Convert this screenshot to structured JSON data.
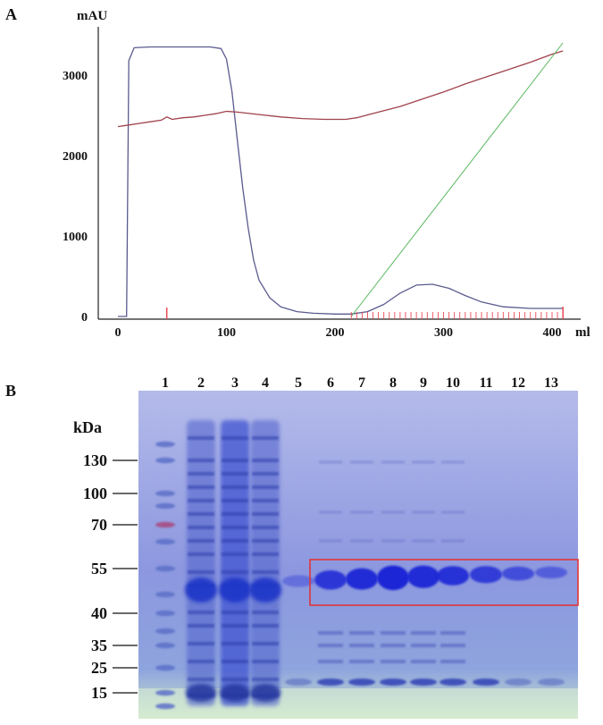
{
  "chart_data": [
    {
      "panel": "A",
      "type": "line",
      "ylabel": "mAU",
      "xlabel": "ml",
      "xlim": [
        0,
        440
      ],
      "ylim": [
        0,
        3500
      ],
      "xticks": [
        "0",
        "100",
        "200",
        "300",
        "400"
      ],
      "yticks": [
        "0",
        "1000",
        "2000",
        "3000"
      ],
      "series": [
        {
          "color": "#5a5a8e",
          "x": [
            0,
            8,
            10,
            15,
            30,
            60,
            85,
            95,
            100,
            105,
            110,
            115,
            120,
            125,
            130,
            140,
            150,
            165,
            180,
            200,
            215,
            230,
            245,
            260,
            275,
            290,
            305,
            320,
            335,
            355,
            380,
            410
          ],
          "y": [
            0,
            0,
            3180,
            3340,
            3350,
            3350,
            3350,
            3330,
            3200,
            2800,
            2200,
            1600,
            1100,
            700,
            450,
            230,
            120,
            60,
            40,
            30,
            30,
            60,
            150,
            290,
            390,
            400,
            350,
            260,
            180,
            120,
            100,
            100
          ]
        },
        {
          "color": "#a0424c",
          "x": [
            0,
            10,
            20,
            30,
            40,
            45,
            50,
            60,
            70,
            80,
            90,
            100,
            110,
            130,
            150,
            170,
            190,
            210,
            220,
            240,
            260,
            280,
            300,
            320,
            340,
            360,
            380,
            400,
            410
          ],
          "y": [
            2360,
            2380,
            2400,
            2420,
            2440,
            2480,
            2450,
            2470,
            2480,
            2500,
            2520,
            2550,
            2540,
            2510,
            2480,
            2460,
            2450,
            2450,
            2470,
            2540,
            2610,
            2700,
            2790,
            2890,
            2980,
            3070,
            3160,
            3260,
            3300
          ]
        },
        {
          "color": "#57b75e",
          "x": [
            215,
            410
          ],
          "y": [
            0,
            3400
          ]
        }
      ],
      "fraction_markers_ml": [
        45,
        215,
        410
      ]
    },
    {
      "panel": "B",
      "type": "table",
      "unit": "kDa",
      "lanes": [
        "1",
        "2",
        "3",
        "4",
        "5",
        "6",
        "7",
        "8",
        "9",
        "10",
        "11",
        "12",
        "13"
      ],
      "markers_kDa": [
        "130",
        "100",
        "70",
        "55",
        "40",
        "35",
        "25",
        "15"
      ]
    }
  ],
  "labels": {
    "panel_a": "A",
    "panel_b": "B"
  }
}
